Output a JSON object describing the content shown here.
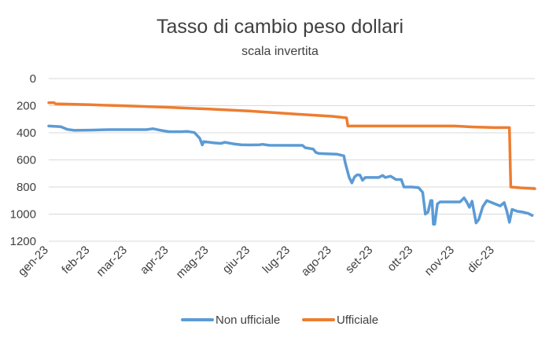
{
  "chart_data": {
    "type": "line",
    "title": "Tasso di cambio peso dollari",
    "subtitle": "scala invertita",
    "xlabel": "",
    "ylabel": "",
    "y_axis": {
      "inverted": true,
      "ylim": [
        0,
        1200
      ],
      "ticks": [
        0,
        200,
        400,
        600,
        800,
        1000,
        1200
      ]
    },
    "x_axis": {
      "range": [
        "2023-01-01",
        "2023-12-31"
      ],
      "ticks": [
        {
          "date": "2023-01-01",
          "label": "gen-23"
        },
        {
          "date": "2023-02-01",
          "label": "feb-23"
        },
        {
          "date": "2023-03-01",
          "label": "mar-23"
        },
        {
          "date": "2023-04-01",
          "label": "apr-23"
        },
        {
          "date": "2023-05-01",
          "label": "mag-23"
        },
        {
          "date": "2023-06-01",
          "label": "giu-23"
        },
        {
          "date": "2023-07-01",
          "label": "lug-23"
        },
        {
          "date": "2023-08-01",
          "label": "ago-23"
        },
        {
          "date": "2023-09-01",
          "label": "set-23"
        },
        {
          "date": "2023-10-01",
          "label": "ott-23"
        },
        {
          "date": "2023-11-01",
          "label": "nov-23"
        },
        {
          "date": "2023-12-01",
          "label": "dic-23"
        }
      ]
    },
    "grid": true,
    "legend_position": "bottom",
    "series": [
      {
        "name": "Non ufficiale",
        "color": "#5b9bd5",
        "points": [
          [
            "2023-01-01",
            350
          ],
          [
            "2023-01-10",
            355
          ],
          [
            "2023-01-15",
            375
          ],
          [
            "2023-01-20",
            382
          ],
          [
            "2023-02-01",
            380
          ],
          [
            "2023-02-15",
            377
          ],
          [
            "2023-03-01",
            377
          ],
          [
            "2023-03-15",
            377
          ],
          [
            "2023-03-20",
            370
          ],
          [
            "2023-03-25",
            380
          ],
          [
            "2023-04-01",
            392
          ],
          [
            "2023-04-10",
            392
          ],
          [
            "2023-04-15",
            390
          ],
          [
            "2023-04-20",
            398
          ],
          [
            "2023-04-24",
            440
          ],
          [
            "2023-04-26",
            490
          ],
          [
            "2023-04-27",
            465
          ],
          [
            "2023-05-05",
            475
          ],
          [
            "2023-05-10",
            478
          ],
          [
            "2023-05-13",
            470
          ],
          [
            "2023-05-20",
            483
          ],
          [
            "2023-05-25",
            488
          ],
          [
            "2023-06-01",
            490
          ],
          [
            "2023-06-08",
            488
          ],
          [
            "2023-06-10",
            485
          ],
          [
            "2023-06-15",
            492
          ],
          [
            "2023-07-01",
            493
          ],
          [
            "2023-07-10",
            493
          ],
          [
            "2023-07-12",
            510
          ],
          [
            "2023-07-18",
            520
          ],
          [
            "2023-07-20",
            545
          ],
          [
            "2023-07-22",
            552
          ],
          [
            "2023-07-28",
            555
          ],
          [
            "2023-08-05",
            558
          ],
          [
            "2023-08-10",
            570
          ],
          [
            "2023-08-11",
            620
          ],
          [
            "2023-08-14",
            730
          ],
          [
            "2023-08-16",
            770
          ],
          [
            "2023-08-18",
            725
          ],
          [
            "2023-08-20",
            710
          ],
          [
            "2023-08-22",
            712
          ],
          [
            "2023-08-24",
            750
          ],
          [
            "2023-08-26",
            730
          ],
          [
            "2023-08-31",
            730
          ],
          [
            "2023-09-05",
            730
          ],
          [
            "2023-09-08",
            715
          ],
          [
            "2023-09-10",
            730
          ],
          [
            "2023-09-14",
            720
          ],
          [
            "2023-09-18",
            745
          ],
          [
            "2023-09-22",
            745
          ],
          [
            "2023-09-24",
            800
          ],
          [
            "2023-09-30",
            800
          ],
          [
            "2023-10-05",
            805
          ],
          [
            "2023-10-08",
            840
          ],
          [
            "2023-10-10",
            1000
          ],
          [
            "2023-10-12",
            985
          ],
          [
            "2023-10-14",
            900
          ],
          [
            "2023-10-15",
            900
          ],
          [
            "2023-10-16",
            1075
          ],
          [
            "2023-10-17",
            1075
          ],
          [
            "2023-10-19",
            925
          ],
          [
            "2023-10-21",
            910
          ],
          [
            "2023-10-28",
            910
          ],
          [
            "2023-11-05",
            910
          ],
          [
            "2023-11-08",
            880
          ],
          [
            "2023-11-10",
            910
          ],
          [
            "2023-11-12",
            950
          ],
          [
            "2023-11-14",
            905
          ],
          [
            "2023-11-17",
            1065
          ],
          [
            "2023-11-19",
            1040
          ],
          [
            "2023-11-22",
            945
          ],
          [
            "2023-11-25",
            900
          ],
          [
            "2023-12-05",
            940
          ],
          [
            "2023-12-08",
            915
          ],
          [
            "2023-12-10",
            975
          ],
          [
            "2023-12-12",
            1060
          ],
          [
            "2023-12-14",
            965
          ],
          [
            "2023-12-18",
            980
          ],
          [
            "2023-12-22",
            985
          ],
          [
            "2023-12-26",
            995
          ],
          [
            "2023-12-29",
            1010
          ]
        ]
      },
      {
        "name": "Ufficiale",
        "color": "#ed7d31",
        "points": [
          [
            "2023-01-01",
            178
          ],
          [
            "2023-01-05",
            178
          ],
          [
            "2023-01-06",
            186
          ],
          [
            "2023-02-01",
            193
          ],
          [
            "2023-03-01",
            202
          ],
          [
            "2023-04-01",
            212
          ],
          [
            "2023-05-01",
            225
          ],
          [
            "2023-06-01",
            240
          ],
          [
            "2023-07-01",
            260
          ],
          [
            "2023-08-01",
            278
          ],
          [
            "2023-08-12",
            290
          ],
          [
            "2023-08-13",
            350
          ],
          [
            "2023-09-01",
            350
          ],
          [
            "2023-10-01",
            350
          ],
          [
            "2023-11-01",
            350
          ],
          [
            "2023-11-15",
            357
          ],
          [
            "2023-12-01",
            362
          ],
          [
            "2023-12-12",
            362
          ],
          [
            "2023-12-13",
            800
          ],
          [
            "2023-12-20",
            806
          ],
          [
            "2023-12-31",
            812
          ]
        ]
      }
    ]
  }
}
